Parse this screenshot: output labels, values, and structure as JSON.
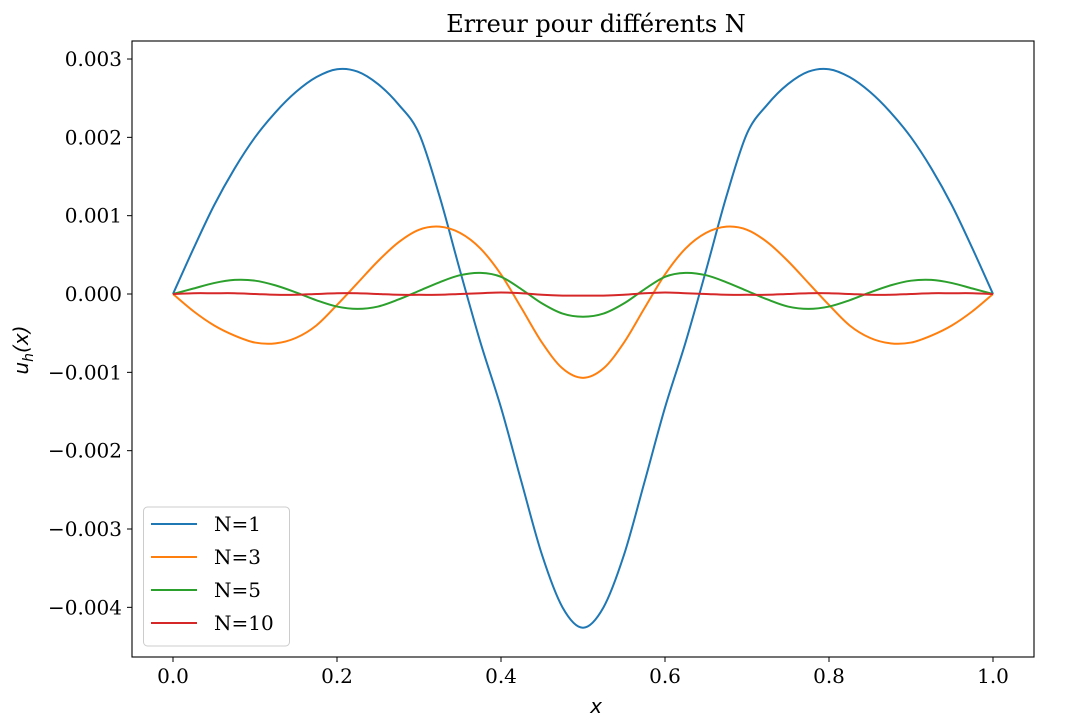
{
  "chart_data": {
    "type": "line",
    "title": "Erreur pour différents N",
    "xlabel": "x",
    "ylabel": {
      "main": "u",
      "sub": "h",
      "tail": "(x)"
    },
    "xlim": [
      -0.05,
      1.05
    ],
    "ylim": [
      -0.004634,
      0.00323
    ],
    "xticks": [
      0.0,
      0.2,
      0.4,
      0.6,
      0.8,
      1.0
    ],
    "xtick_labels": [
      "0.0",
      "0.2",
      "0.4",
      "0.6",
      "0.8",
      "1.0"
    ],
    "yticks": [
      -0.004,
      -0.003,
      -0.002,
      -0.001,
      0.0,
      0.001,
      0.002,
      0.003
    ],
    "ytick_labels": [
      "−0.004",
      "−0.003",
      "−0.002",
      "−0.001",
      "0.000",
      "0.001",
      "0.002",
      "0.003"
    ],
    "grid": false,
    "legend_position": "lower-left",
    "x": [
      0,
      0.025,
      0.05,
      0.075,
      0.1,
      0.125,
      0.15,
      0.175,
      0.2,
      0.225,
      0.25,
      0.275,
      0.3,
      0.325,
      0.35,
      0.375,
      0.4,
      0.425,
      0.45,
      0.475,
      0.5,
      0.525,
      0.55,
      0.575,
      0.6,
      0.625,
      0.65,
      0.675,
      0.7,
      0.725,
      0.75,
      0.775,
      0.8,
      0.825,
      0.85,
      0.875,
      0.9,
      0.925,
      0.95,
      0.975,
      1.0
    ],
    "series": [
      {
        "name": "N=1",
        "color": "#1f77b4",
        "values": [
          0,
          0.00058,
          0.00113,
          0.0016,
          0.002,
          0.00232,
          0.00258,
          0.00277,
          0.00287,
          0.00284,
          0.00268,
          0.00242,
          0.00205,
          0.00125,
          0.0003,
          -0.00062,
          -0.00145,
          -0.0024,
          -0.00333,
          -0.004,
          -0.00426,
          -0.004,
          -0.00333,
          -0.0024,
          -0.00145,
          -0.00062,
          0.0003,
          0.00125,
          0.00205,
          0.00242,
          0.00268,
          0.00284,
          0.00287,
          0.00277,
          0.00258,
          0.00232,
          0.002,
          0.0016,
          0.00113,
          0.00058,
          0
        ]
      },
      {
        "name": "N=3",
        "color": "#ff7f0e",
        "values": [
          0,
          -0.00022,
          -0.0004,
          -0.00053,
          -0.00062,
          -0.00063,
          -0.00056,
          -0.0004,
          -0.00014,
          0.00014,
          0.00042,
          0.00066,
          0.00082,
          0.00086,
          0.00078,
          0.00058,
          0.00025,
          -0.00018,
          -0.00062,
          -0.00095,
          -0.00107,
          -0.00095,
          -0.00062,
          -0.00018,
          0.00025,
          0.00058,
          0.00078,
          0.00086,
          0.00082,
          0.00066,
          0.00042,
          0.00014,
          -0.00014,
          -0.0004,
          -0.00056,
          -0.00063,
          -0.00062,
          -0.00053,
          -0.0004,
          -0.00022,
          0
        ]
      },
      {
        "name": "N=5",
        "color": "#2ca02c",
        "values": [
          0,
          7e-05,
          0.00014,
          0.00018,
          0.00017,
          0.00011,
          2e-05,
          -8e-05,
          -0.00016,
          -0.00019,
          -0.00016,
          -7e-05,
          4e-05,
          0.00015,
          0.00024,
          0.00027,
          0.00022,
          6e-05,
          -0.00012,
          -0.00025,
          -0.00029,
          -0.00025,
          -0.00012,
          6e-05,
          0.00022,
          0.00027,
          0.00024,
          0.00015,
          4e-05,
          -7e-05,
          -0.00016,
          -0.00019,
          -0.00016,
          -8e-05,
          2e-05,
          0.00011,
          0.00017,
          0.00018,
          0.00014,
          7e-05,
          0
        ]
      },
      {
        "name": "N=10",
        "color": "#d62728",
        "values": [
          0,
          1e-05,
          1e-05,
          1e-05,
          0,
          -1e-05,
          -1e-05,
          0,
          1e-05,
          1e-05,
          0,
          -1e-05,
          -1e-05,
          -1e-05,
          0,
          1e-05,
          2e-05,
          1e-05,
          -1e-05,
          -2e-05,
          -2e-05,
          -2e-05,
          -1e-05,
          1e-05,
          2e-05,
          1e-05,
          0,
          -1e-05,
          -1e-05,
          -1e-05,
          0,
          1e-05,
          1e-05,
          0,
          -1e-05,
          -1e-05,
          0,
          1e-05,
          1e-05,
          1e-05,
          0
        ]
      }
    ]
  }
}
